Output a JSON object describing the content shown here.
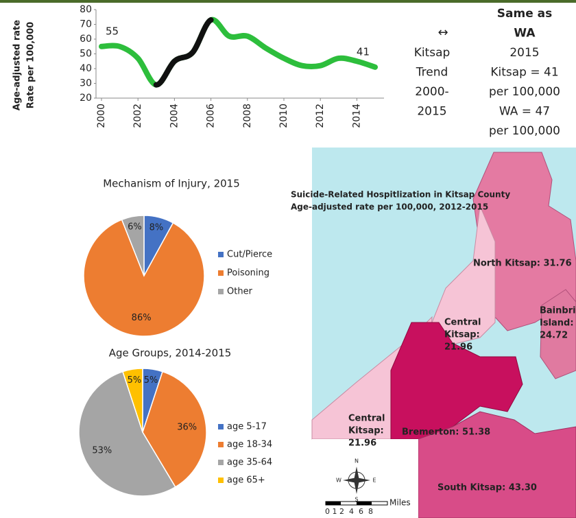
{
  "chart_data": [
    {
      "type": "line",
      "ylabel": [
        "Age-adjusted rate",
        "Rate per 100,000"
      ],
      "x": [
        2000,
        2001,
        2002,
        2003,
        2004,
        2005,
        2006,
        2007,
        2008,
        2009,
        2010,
        2011,
        2012,
        2013,
        2014,
        2015
      ],
      "values": [
        55,
        55,
        47,
        29,
        45,
        51,
        73,
        62,
        62,
        54,
        47,
        42,
        42,
        47,
        45,
        41
      ],
      "value_labels": [
        "55",
        null,
        null,
        null,
        null,
        null,
        null,
        null,
        null,
        null,
        null,
        null,
        null,
        null,
        null,
        "41"
      ],
      "color": "#2dbe3c",
      "highlight": {
        "x": [
          2003,
          2006
        ],
        "color": "#111111"
      },
      "xlim": [
        2000,
        2015.5
      ],
      "xticks": [
        2000,
        2002,
        2004,
        2006,
        2008,
        2010,
        2012,
        2014
      ],
      "ylim": [
        20,
        80
      ],
      "yticks": [
        20,
        30,
        40,
        50,
        60,
        70,
        80
      ]
    },
    {
      "type": "pie",
      "title": "Mechanism of Injury, 2015",
      "categories": [
        "Cut/Pierce",
        "Poisoning",
        "Other"
      ],
      "values": [
        8,
        86,
        6
      ],
      "value_labels": [
        "8%",
        "86%",
        "6%"
      ],
      "colors": [
        "#4472c4",
        "#ed7d31",
        "#a5a5a5"
      ]
    },
    {
      "type": "pie",
      "title": "Age Groups, 2014-2015",
      "categories": [
        "age 5-17",
        "age 18-34",
        "age 35-64",
        "age 65+"
      ],
      "values": [
        5,
        36,
        53,
        5
      ],
      "value_labels": [
        "5%",
        "36%",
        "53%",
        "5%"
      ],
      "colors": [
        "#4472c4",
        "#ed7d31",
        "#a5a5a5",
        "#ffc000"
      ]
    }
  ],
  "trend_panel": {
    "arrow": "↔",
    "left": [
      "Kitsap",
      "Trend",
      "2000-",
      "2015"
    ],
    "right_bold": [
      "Same as",
      "WA"
    ],
    "right": [
      "2015",
      "Kitsap = 41",
      "per 100,000",
      "WA = 47",
      "per 100,000"
    ]
  },
  "map": {
    "title": [
      "Suicide-Related Hospitlization in Kitsap County",
      "Age-adjusted rate per 100,000, 2012-2015"
    ],
    "regions": [
      {
        "lines": [
          "North Kitsap: 31.76"
        ]
      },
      {
        "lines": [
          "Central",
          "Kitsap:",
          "21.96"
        ]
      },
      {
        "lines": [
          "Bainbridge",
          "Island:",
          "24.72"
        ]
      },
      {
        "lines": [
          "Bremerton: 51.38"
        ]
      },
      {
        "lines": [
          "Central",
          "Kitsap:",
          "21.96"
        ]
      },
      {
        "lines": [
          "South Kitsap: 43.30"
        ]
      }
    ],
    "compass": [
      "N",
      "S",
      "E",
      "W"
    ],
    "scale_unit": "Miles",
    "scale_ticks": "0 1 2  4  6  8"
  }
}
